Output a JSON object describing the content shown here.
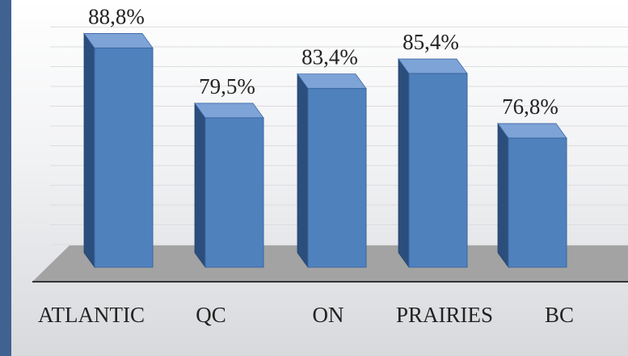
{
  "chart_data": {
    "type": "bar",
    "title": "",
    "xlabel": "",
    "ylabel": "",
    "categories": [
      "ATLANTIC",
      "QC",
      "ON",
      "PRAIRIES",
      "BC"
    ],
    "values": [
      88.8,
      79.5,
      83.4,
      85.4,
      76.8
    ],
    "data_labels": [
      "88,8%",
      "79,5%",
      "83,4%",
      "85,4%",
      "76,8%"
    ],
    "grid": true,
    "legend": "none",
    "style": "3d-column",
    "colors": {
      "bar_front": "#4f81bd",
      "bar_side": "#2c4e7c",
      "bar_top": "#7ea3d6",
      "floor": "#a3a3a3",
      "page_background": "#3f6290"
    }
  }
}
